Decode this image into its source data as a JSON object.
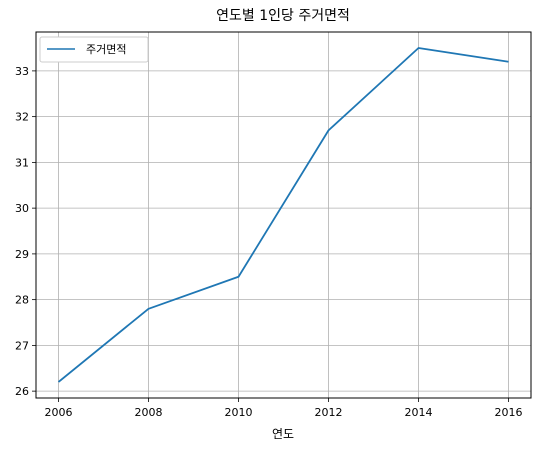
{
  "chart_data": {
    "type": "line",
    "title": "연도별 1인당 주거면적",
    "xlabel": "연도",
    "ylabel": "",
    "x": [
      2006,
      2008,
      2010,
      2012,
      2014,
      2016
    ],
    "series": [
      {
        "name": "주거면적",
        "values": [
          26.2,
          27.8,
          28.5,
          31.7,
          33.5,
          33.2
        ],
        "color": "#1f77b4"
      }
    ],
    "xlim": [
      2005.5,
      2016.5
    ],
    "ylim": [
      25.85,
      33.85
    ],
    "x_ticks": [
      2006,
      2008,
      2010,
      2012,
      2014,
      2016
    ],
    "x_tick_labels": [
      "2006",
      "2008",
      "2010",
      "2012",
      "2014",
      "2016"
    ],
    "y_ticks": [
      26,
      27,
      28,
      29,
      30,
      31,
      32,
      33
    ],
    "y_tick_labels": [
      "26",
      "27",
      "28",
      "29",
      "30",
      "31",
      "32",
      "33"
    ],
    "grid": true,
    "legend_position": "top-left"
  }
}
